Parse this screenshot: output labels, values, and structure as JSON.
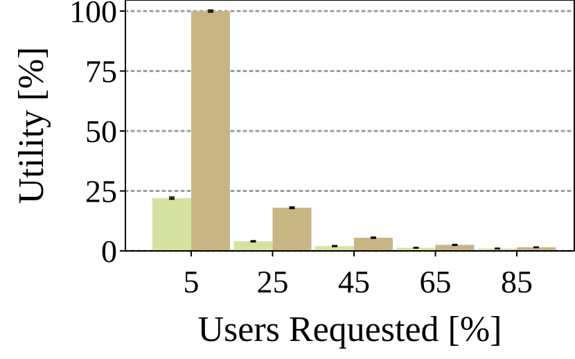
{
  "chart_data": {
    "type": "bar",
    "xlabel": "Users Requested [%]",
    "ylabel": "Utility [%]",
    "categories": [
      "5",
      "25",
      "45",
      "65",
      "85"
    ],
    "ylim": [
      0,
      100
    ],
    "yticks": [
      0,
      25,
      50,
      75,
      100
    ],
    "grid": "horizontal dotted",
    "legend": "none",
    "series": [
      {
        "color": "#d6e2a2",
        "values": [
          22,
          4,
          2,
          1.3,
          1
        ]
      },
      {
        "color": "#c7b584",
        "values": [
          100,
          18,
          5.5,
          2.5,
          1.5
        ]
      }
    ],
    "error_bars": [
      [
        0.4,
        0.2,
        0.15,
        0.1,
        0.1
      ],
      [
        0.4,
        0.3,
        0.2,
        0.15,
        0.1
      ]
    ]
  }
}
